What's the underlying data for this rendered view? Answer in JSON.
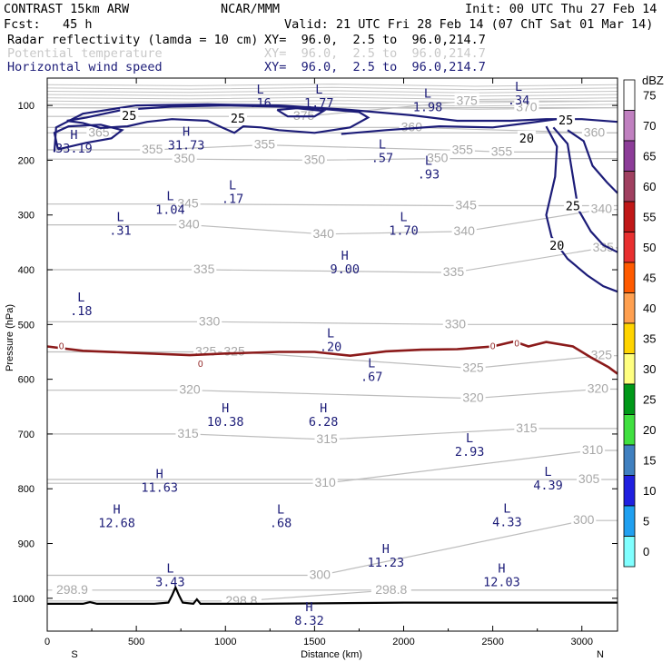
{
  "header": {
    "model": "CONTRAST 15km ARW",
    "org": "NCAR/MMM",
    "init": "Init: 00 UTC Thu 27 Feb 14",
    "fcst": "Fcst:   45 h",
    "valid": "Valid: 21 UTC Fri 28 Feb 14 (07 ChT Sat 01 Mar 14)",
    "fields": [
      {
        "name": "Radar reflectivity (lamda = 10 cm)",
        "xy": "XY=  96.0,  2.5 to  96.0,214.7",
        "color": "#000000"
      },
      {
        "name": "Potential temperature",
        "xy": "XY=  96.0,  2.5 to  96.0,214.7",
        "color": "#c8c8c8"
      },
      {
        "name": "Horizontal wind speed",
        "xy": "XY=  96.0,  2.5 to  96.0,214.7",
        "color": "#1c1c78"
      }
    ]
  },
  "chart_data": {
    "type": "cross-section",
    "xlabel": "Distance (km)",
    "ylabel": "Pressure (hPa)",
    "xlim": [
      0,
      3200
    ],
    "ylim": [
      1060,
      50
    ],
    "x_ticks": [
      "0",
      "500",
      "1000",
      "1500",
      "2000",
      "2500",
      "3000"
    ],
    "x_tick_values": [
      0,
      500,
      1000,
      1500,
      2000,
      2500,
      3000
    ],
    "y_ticks": [
      "100",
      "200",
      "300",
      "400",
      "500",
      "600",
      "700",
      "800",
      "900",
      "1000"
    ],
    "y_tick_values": [
      100,
      200,
      300,
      400,
      500,
      600,
      700,
      800,
      900,
      1000
    ],
    "left_end_label": "S",
    "right_end_label": "N",
    "colorbar": {
      "unit": "dBZ",
      "labels": [
        "75",
        "70",
        "65",
        "60",
        "55",
        "50",
        "45",
        "40",
        "35",
        "30",
        "25",
        "20",
        "15",
        "10",
        "5",
        "0"
      ],
      "colors": [
        "#ffffff",
        "#c080c0",
        "#8c3c98",
        "#a04060",
        "#c01818",
        "#e83030",
        "#ff5a00",
        "#ffa050",
        "#ffd400",
        "#ffff80",
        "#009818",
        "#40e040",
        "#4080c0",
        "#2020e0",
        "#20a0f0",
        "#80ffff"
      ]
    },
    "theta_labels": [
      {
        "v": "375",
        "x": 1440,
        "p": 120
      },
      {
        "v": "375",
        "x": 2355,
        "p": 92
      },
      {
        "v": "370",
        "x": 2690,
        "p": 104
      },
      {
        "v": "365",
        "x": 290,
        "p": 150
      },
      {
        "v": "360",
        "x": 2045,
        "p": 140
      },
      {
        "v": "360",
        "x": 3070,
        "p": 150
      },
      {
        "v": "355",
        "x": 590,
        "p": 181
      },
      {
        "v": "355",
        "x": 1220,
        "p": 172
      },
      {
        "v": "355",
        "x": 2330,
        "p": 182
      },
      {
        "v": "355",
        "x": 2550,
        "p": 185
      },
      {
        "v": "350",
        "x": 770,
        "p": 198
      },
      {
        "v": "350",
        "x": 1500,
        "p": 200
      },
      {
        "v": "350",
        "x": 2190,
        "p": 197
      },
      {
        "v": "345",
        "x": 790,
        "p": 280
      },
      {
        "v": "345",
        "x": 2350,
        "p": 283
      },
      {
        "v": "340",
        "x": 795,
        "p": 318
      },
      {
        "v": "340",
        "x": 1550,
        "p": 335
      },
      {
        "v": "340",
        "x": 2340,
        "p": 330
      },
      {
        "v": "340",
        "x": 3110,
        "p": 290
      },
      {
        "v": "335",
        "x": 880,
        "p": 400
      },
      {
        "v": "335",
        "x": 2280,
        "p": 405
      },
      {
        "v": "335",
        "x": 3120,
        "p": 360
      },
      {
        "v": "330",
        "x": 910,
        "p": 495
      },
      {
        "v": "330",
        "x": 2290,
        "p": 500
      },
      {
        "v": "325",
        "x": 890,
        "p": 550
      },
      {
        "v": "325",
        "x": 1050,
        "p": 550
      },
      {
        "v": "325",
        "x": 2390,
        "p": 580
      },
      {
        "v": "325",
        "x": 3110,
        "p": 557
      },
      {
        "v": "320",
        "x": 800,
        "p": 620
      },
      {
        "v": "320",
        "x": 2390,
        "p": 635
      },
      {
        "v": "320",
        "x": 3090,
        "p": 618
      },
      {
        "v": "315",
        "x": 790,
        "p": 700
      },
      {
        "v": "315",
        "x": 1570,
        "p": 710
      },
      {
        "v": "315",
        "x": 2690,
        "p": 690
      },
      {
        "v": "310",
        "x": 1560,
        "p": 790
      },
      {
        "v": "310",
        "x": 3060,
        "p": 730
      },
      {
        "v": "305",
        "x": 3040,
        "p": 783
      },
      {
        "v": "300",
        "x": 1530,
        "p": 958
      },
      {
        "v": "300",
        "x": 3010,
        "p": 858
      },
      {
        "v": "298.9",
        "x": 140,
        "p": 985
      },
      {
        "v": "298.8",
        "x": 1090,
        "p": 1005
      },
      {
        "v": "298.8",
        "x": 1930,
        "p": 985
      }
    ],
    "extrema": [
      {
        "t": "H",
        "v": "33.19",
        "x": 150,
        "p": 168
      },
      {
        "t": "H",
        "v": "31.73",
        "x": 780,
        "p": 162
      },
      {
        "t": "L",
        "v": ".16",
        "x": 1195,
        "p": 85
      },
      {
        "t": "L",
        "v": "1.77",
        "x": 1525,
        "p": 85
      },
      {
        "t": "L",
        "v": "1.98",
        "x": 2135,
        "p": 92
      },
      {
        "t": "L",
        "v": ".34",
        "x": 2645,
        "p": 80
      },
      {
        "t": "L",
        "v": ".57",
        "x": 1880,
        "p": 185
      },
      {
        "t": "L",
        "v": ".93",
        "x": 2140,
        "p": 215
      },
      {
        "t": "L",
        "v": "1.04",
        "x": 690,
        "p": 280
      },
      {
        "t": "L",
        "v": ".17",
        "x": 1040,
        "p": 260
      },
      {
        "t": "L",
        "v": ".31",
        "x": 410,
        "p": 318
      },
      {
        "t": "L",
        "v": "1.70",
        "x": 2000,
        "p": 318
      },
      {
        "t": "H",
        "v": "9.00",
        "x": 1670,
        "p": 388
      },
      {
        "t": "L",
        "v": ".18",
        "x": 190,
        "p": 465
      },
      {
        "t": "L",
        "v": ".20",
        "x": 1590,
        "p": 530
      },
      {
        "t": "L",
        "v": ".67",
        "x": 1820,
        "p": 585
      },
      {
        "t": "H",
        "v": "10.38",
        "x": 1000,
        "p": 667
      },
      {
        "t": "H",
        "v": "6.28",
        "x": 1550,
        "p": 667
      },
      {
        "t": "L",
        "v": "2.93",
        "x": 2370,
        "p": 722
      },
      {
        "t": "H",
        "v": "11.63",
        "x": 630,
        "p": 787
      },
      {
        "t": "L",
        "v": "4.39",
        "x": 2810,
        "p": 783
      },
      {
        "t": "H",
        "v": "12.68",
        "x": 390,
        "p": 852
      },
      {
        "t": "L",
        "v": ".68",
        "x": 1310,
        "p": 852
      },
      {
        "t": "L",
        "v": "4.33",
        "x": 2580,
        "p": 850
      },
      {
        "t": "H",
        "v": "11.23",
        "x": 1900,
        "p": 924
      },
      {
        "t": "L",
        "v": "3.43",
        "x": 690,
        "p": 960
      },
      {
        "t": "H",
        "v": "12.03",
        "x": 2550,
        "p": 960
      },
      {
        "t": "H",
        "v": "8.32",
        "x": 1470,
        "p": 1030
      }
    ],
    "wind_labels": [
      {
        "v": "25",
        "x": 460,
        "p": 120
      },
      {
        "v": "25",
        "x": 1070,
        "p": 125
      },
      {
        "v": "25",
        "x": 2910,
        "p": 128
      },
      {
        "v": "20",
        "x": 2690,
        "p": 161
      },
      {
        "v": "25",
        "x": 2950,
        "p": 285
      },
      {
        "v": "20",
        "x": 2860,
        "p": 357
      }
    ],
    "reflectivity_labels": [
      {
        "v": "0",
        "x": 80,
        "p": 540
      },
      {
        "v": "0",
        "x": 860,
        "p": 572
      },
      {
        "v": "0",
        "x": 2500,
        "p": 540
      },
      {
        "v": "0",
        "x": 2635,
        "p": 535
      }
    ],
    "wind_series": [
      {
        "name": "25 m/s jet core",
        "points": [
          [
            110,
            128
          ],
          [
            220,
            122
          ],
          [
            420,
            108
          ],
          [
            700,
            102
          ],
          [
            1000,
            100
          ],
          [
            1300,
            102
          ],
          [
            1500,
            105
          ],
          [
            1750,
            112
          ],
          [
            1800,
            122
          ],
          [
            1700,
            140
          ],
          [
            1500,
            150
          ],
          [
            1300,
            145
          ],
          [
            1200,
            140
          ],
          [
            1100,
            138
          ],
          [
            1050,
            150
          ],
          [
            980,
            140
          ],
          [
            900,
            128
          ],
          [
            700,
            125
          ],
          [
            560,
            130
          ],
          [
            450,
            138
          ],
          [
            300,
            141
          ],
          [
            200,
            132
          ],
          [
            110,
            128
          ]
        ]
      },
      {
        "name": "25 m/s inner core",
        "points": [
          [
            1290,
            108
          ],
          [
            1400,
            105
          ],
          [
            1550,
            110
          ],
          [
            1500,
            120
          ],
          [
            1350,
            120
          ],
          [
            1290,
            108
          ]
        ]
      },
      {
        "name": "20 m/s outer",
        "points": [
          [
            40,
            185
          ],
          [
            50,
            140
          ],
          [
            200,
            115
          ],
          [
            500,
            100
          ],
          [
            900,
            98
          ],
          [
            1300,
            100
          ],
          [
            1700,
            108
          ],
          [
            2050,
            118
          ],
          [
            2300,
            128
          ],
          [
            2600,
            128
          ],
          [
            2800,
            125
          ],
          [
            3000,
            125
          ],
          [
            3200,
            130
          ]
        ]
      },
      {
        "name": "20 m/s lower",
        "points": [
          [
            1650,
            152
          ],
          [
            1900,
            145
          ],
          [
            2200,
            138
          ],
          [
            2500,
            140
          ],
          [
            2700,
            132
          ],
          [
            2860,
            125
          ]
        ]
      },
      {
        "name": "20 m/s north",
        "points": [
          [
            2800,
            138
          ],
          [
            2860,
            175
          ],
          [
            2850,
            230
          ],
          [
            2800,
            300
          ],
          [
            2830,
            340
          ],
          [
            2920,
            380
          ],
          [
            3030,
            410
          ],
          [
            3120,
            430
          ],
          [
            3200,
            440
          ]
        ]
      },
      {
        "name": "25 m/s north",
        "points": [
          [
            2840,
            140
          ],
          [
            2920,
            170
          ],
          [
            2950,
            230
          ],
          [
            2980,
            290
          ],
          [
            3050,
            330
          ],
          [
            3120,
            355
          ],
          [
            3200,
            368
          ]
        ]
      },
      {
        "name": "25 m/s north inner",
        "points": [
          [
            2920,
            145
          ],
          [
            3010,
            165
          ],
          [
            3060,
            210
          ],
          [
            3140,
            240
          ],
          [
            3200,
            260
          ]
        ]
      },
      {
        "name": "20 m/s lobe left",
        "points": [
          [
            60,
            180
          ],
          [
            40,
            150
          ],
          [
            120,
            138
          ],
          [
            300,
            135
          ],
          [
            420,
            145
          ],
          [
            360,
            160
          ],
          [
            220,
            168
          ],
          [
            60,
            180
          ]
        ]
      }
    ],
    "freezing_level": [
      [
        0,
        540
      ],
      [
        200,
        548
      ],
      [
        500,
        552
      ],
      [
        800,
        556
      ],
      [
        1000,
        553
      ],
      [
        1300,
        550
      ],
      [
        1500,
        550
      ],
      [
        1700,
        557
      ],
      [
        1900,
        549
      ],
      [
        2100,
        546
      ],
      [
        2300,
        545
      ],
      [
        2500,
        540
      ],
      [
        2620,
        531
      ],
      [
        2700,
        540
      ],
      [
        2800,
        532
      ],
      [
        2950,
        540
      ],
      [
        3050,
        560
      ],
      [
        3150,
        578
      ],
      [
        3200,
        590
      ]
    ],
    "terrain": [
      [
        0,
        1010
      ],
      [
        200,
        1010
      ],
      [
        240,
        1007
      ],
      [
        280,
        1010
      ],
      [
        600,
        1010
      ],
      [
        680,
        1008
      ],
      [
        700,
        995
      ],
      [
        720,
        980
      ],
      [
        740,
        995
      ],
      [
        760,
        1008
      ],
      [
        820,
        1010
      ],
      [
        840,
        1002
      ],
      [
        860,
        1010
      ],
      [
        1200,
        1010
      ],
      [
        2000,
        1008
      ],
      [
        2800,
        1008
      ],
      [
        3200,
        1008
      ]
    ]
  }
}
